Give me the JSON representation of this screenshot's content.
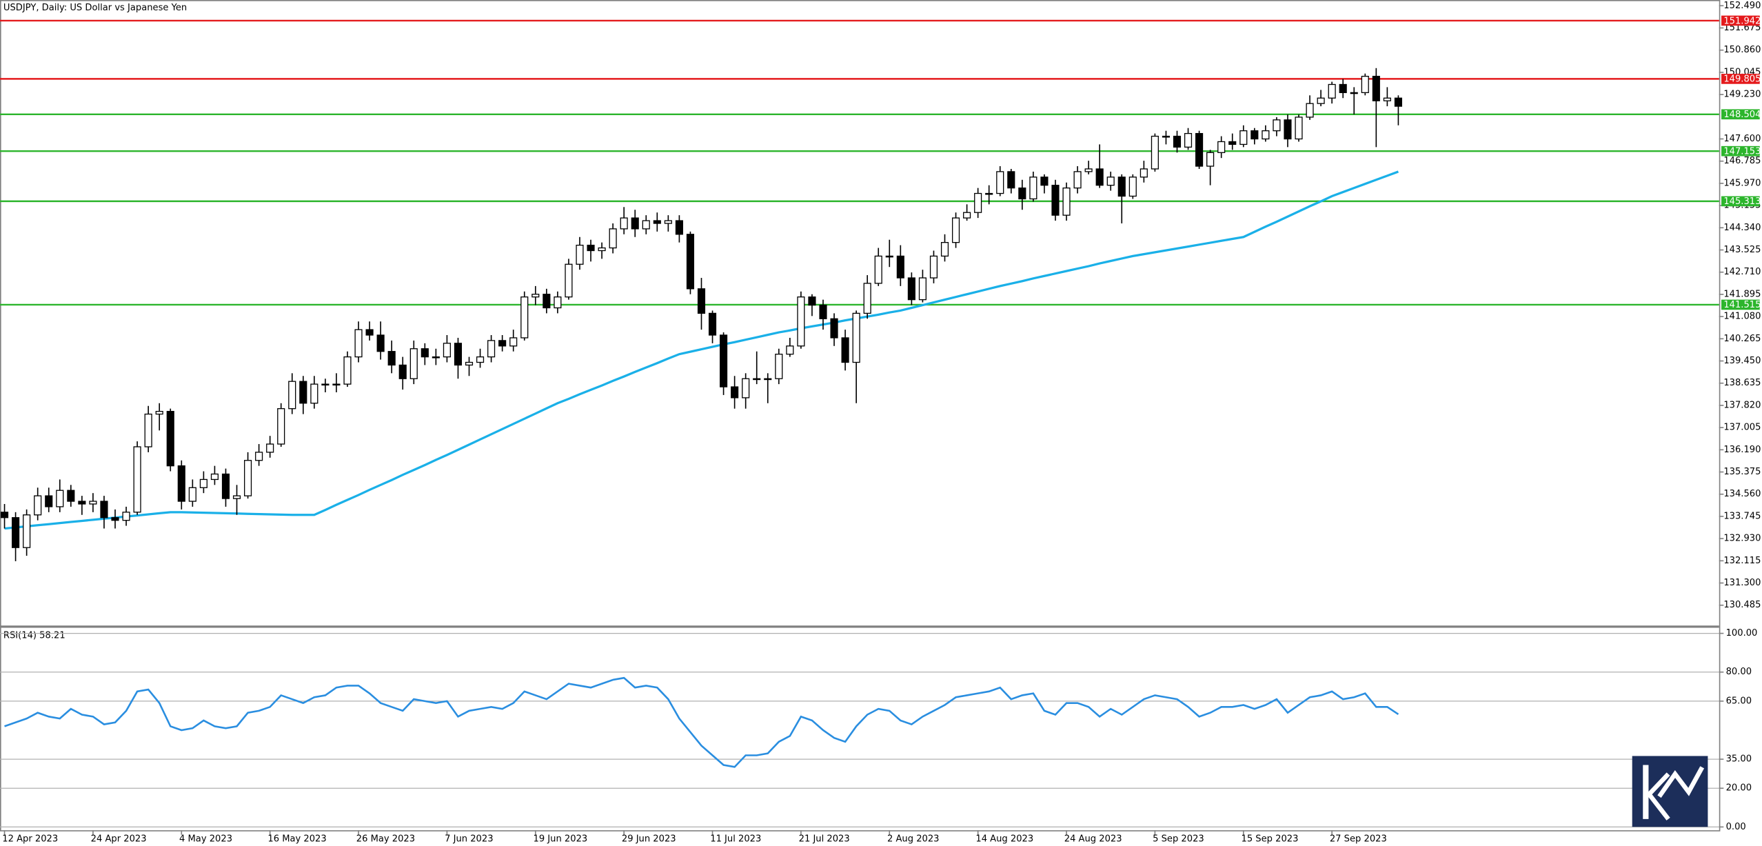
{
  "chart_data": [
    {
      "type": "candlestick",
      "title": "USDJPY, Daily:  US Dollar vs Japanese Yen",
      "categories": [
        "12 Apr 2023",
        null,
        null,
        null,
        null,
        null,
        null,
        null,
        "24 Apr 2023",
        null,
        null,
        null,
        null,
        null,
        null,
        null,
        "4 May 2023",
        null,
        null,
        null,
        null,
        null,
        null,
        null,
        "16 May 2023",
        null,
        null,
        null,
        null,
        null,
        null,
        null,
        "26 May 2023",
        null,
        null,
        null,
        null,
        null,
        null,
        null,
        "7 Jun 2023",
        null,
        null,
        null,
        null,
        null,
        null,
        null,
        "19 Jun 2023",
        null,
        null,
        null,
        null,
        null,
        null,
        null,
        "29 Jun 2023",
        null,
        null,
        null,
        null,
        null,
        null,
        null,
        "11 Jul 2023",
        null,
        null,
        null,
        null,
        null,
        null,
        null,
        "21 Jul 2023",
        null,
        null,
        null,
        null,
        null,
        null,
        null,
        "2 Aug 2023",
        null,
        null,
        null,
        null,
        null,
        null,
        null,
        "14 Aug 2023",
        null,
        null,
        null,
        null,
        null,
        null,
        null,
        "24 Aug 2023",
        null,
        null,
        null,
        null,
        null,
        null,
        null,
        "5 Sep 2023",
        null,
        null,
        null,
        null,
        null,
        null,
        null,
        "15 Sep 2023",
        null,
        null,
        null,
        null,
        null,
        null,
        null,
        "27 Sep 2023",
        null,
        null,
        null,
        null,
        null,
        null
      ],
      "open": [
        133.9,
        133.7,
        132.6,
        133.8,
        134.5,
        134.1,
        134.7,
        134.3,
        134.2,
        134.3,
        133.7,
        133.6,
        133.9,
        136.3,
        137.5,
        137.6,
        135.6,
        134.3,
        134.8,
        135.1,
        135.3,
        134.4,
        134.5,
        135.8,
        136.1,
        136.4,
        137.7,
        138.7,
        137.9,
        138.6,
        138.6,
        138.6,
        139.6,
        140.6,
        140.4,
        139.8,
        139.3,
        138.8,
        139.9,
        139.6,
        139.6,
        140.1,
        139.3,
        139.4,
        139.6,
        140.2,
        140.0,
        140.3,
        141.8,
        141.9,
        141.4,
        141.8,
        143.0,
        143.7,
        143.5,
        143.6,
        144.3,
        144.7,
        144.3,
        144.6,
        144.5,
        144.6,
        144.1,
        142.1,
        141.2,
        140.4,
        138.5,
        138.1,
        138.8,
        138.8,
        138.8,
        139.7,
        140.0,
        141.8,
        141.5,
        141.0,
        140.3,
        139.4,
        141.2,
        142.3,
        143.3,
        143.3,
        142.5,
        141.7,
        142.5,
        143.3,
        143.8,
        144.7,
        144.9,
        145.6,
        145.6,
        146.4,
        145.8,
        145.4,
        146.2,
        145.9,
        144.8,
        145.8,
        146.4,
        146.5,
        145.9,
        146.2,
        145.5,
        146.2,
        146.5,
        147.7,
        147.7,
        147.3,
        147.8,
        146.6,
        147.1,
        147.5,
        147.4,
        147.9,
        147.6,
        147.9,
        148.3,
        147.6,
        148.4,
        148.9,
        149.1,
        149.6,
        149.3,
        149.3,
        149.9,
        149.0,
        149.1
      ],
      "high": [
        134.2,
        133.9,
        134.0,
        134.8,
        134.8,
        135.1,
        134.9,
        134.5,
        134.6,
        134.5,
        134.0,
        134.1,
        136.5,
        137.8,
        137.9,
        137.7,
        135.8,
        135.1,
        135.4,
        135.6,
        135.5,
        134.9,
        136.1,
        136.4,
        136.7,
        137.9,
        139.0,
        138.9,
        138.9,
        138.8,
        139.0,
        139.8,
        140.9,
        140.9,
        140.9,
        140.2,
        139.6,
        140.2,
        140.1,
        139.9,
        140.4,
        140.3,
        139.6,
        139.9,
        140.4,
        140.4,
        140.6,
        142.0,
        142.2,
        142.1,
        142.0,
        143.2,
        144.0,
        143.9,
        143.8,
        144.5,
        145.1,
        145.0,
        144.8,
        144.9,
        144.8,
        144.8,
        144.2,
        142.5,
        141.3,
        140.5,
        138.9,
        139.0,
        139.8,
        139.0,
        139.9,
        140.3,
        142.0,
        141.9,
        141.7,
        141.2,
        140.6,
        141.3,
        142.6,
        143.6,
        143.9,
        143.7,
        142.7,
        142.8,
        143.5,
        144.1,
        144.9,
        145.2,
        145.8,
        145.9,
        146.6,
        146.5,
        146.1,
        146.4,
        146.3,
        146.1,
        146.0,
        146.6,
        146.8,
        147.4,
        146.4,
        146.3,
        146.3,
        146.8,
        147.8,
        147.9,
        147.9,
        148.0,
        147.9,
        147.2,
        147.7,
        147.8,
        148.1,
        148.0,
        148.1,
        148.4,
        148.5,
        148.5,
        149.2,
        149.4,
        149.7,
        149.8,
        149.5,
        150.0,
        150.2,
        149.5,
        149.2
      ],
      "low": [
        133.3,
        132.1,
        132.3,
        133.6,
        133.9,
        133.9,
        134.1,
        133.8,
        133.9,
        133.3,
        133.3,
        133.4,
        133.8,
        136.1,
        136.9,
        135.4,
        134.0,
        134.1,
        134.6,
        134.9,
        134.1,
        133.8,
        134.4,
        135.6,
        135.9,
        136.3,
        137.5,
        137.5,
        137.7,
        138.3,
        138.3,
        138.5,
        139.4,
        140.2,
        139.5,
        139.0,
        138.4,
        138.6,
        139.3,
        139.3,
        139.4,
        138.8,
        138.9,
        139.2,
        139.4,
        139.8,
        139.8,
        140.2,
        141.5,
        141.2,
        141.2,
        141.7,
        142.8,
        143.1,
        143.2,
        143.4,
        144.1,
        144.0,
        144.1,
        144.2,
        144.2,
        143.8,
        141.9,
        140.6,
        140.1,
        138.2,
        137.7,
        137.7,
        138.6,
        137.9,
        138.6,
        139.6,
        139.9,
        141.1,
        140.6,
        140.0,
        139.1,
        137.9,
        141.0,
        142.2,
        142.9,
        142.2,
        141.5,
        141.6,
        142.3,
        143.1,
        143.6,
        144.6,
        144.7,
        145.2,
        145.5,
        145.6,
        145.0,
        145.3,
        145.6,
        144.6,
        144.6,
        145.6,
        146.3,
        145.8,
        145.7,
        144.5,
        145.4,
        146.0,
        146.4,
        147.4,
        147.1,
        147.2,
        146.5,
        145.9,
        146.9,
        147.2,
        147.3,
        147.4,
        147.5,
        147.7,
        147.3,
        147.5,
        148.3,
        148.8,
        148.9,
        149.1,
        148.5,
        149.2,
        147.3,
        148.8,
        148.1
      ],
      "close": [
        133.7,
        132.6,
        133.8,
        134.5,
        134.1,
        134.7,
        134.3,
        134.2,
        134.3,
        133.7,
        133.6,
        133.9,
        136.3,
        137.5,
        137.6,
        135.6,
        134.3,
        134.8,
        135.1,
        135.3,
        134.4,
        134.5,
        135.8,
        136.1,
        136.4,
        137.7,
        138.7,
        137.9,
        138.6,
        138.6,
        138.6,
        139.6,
        140.6,
        140.4,
        139.8,
        139.3,
        138.8,
        139.9,
        139.6,
        139.6,
        140.1,
        139.3,
        139.4,
        139.6,
        140.2,
        140.0,
        140.3,
        141.8,
        141.9,
        141.4,
        141.8,
        143.0,
        143.7,
        143.5,
        143.6,
        144.3,
        144.7,
        144.3,
        144.6,
        144.5,
        144.6,
        144.1,
        142.1,
        141.2,
        140.4,
        138.5,
        138.1,
        138.8,
        138.8,
        138.8,
        139.7,
        140.0,
        141.8,
        141.5,
        141.0,
        140.3,
        139.4,
        141.2,
        142.3,
        143.3,
        143.3,
        142.5,
        141.7,
        142.5,
        143.3,
        143.8,
        144.7,
        144.9,
        145.6,
        145.6,
        146.4,
        145.8,
        145.4,
        146.2,
        145.9,
        144.8,
        145.8,
        146.4,
        146.5,
        145.9,
        146.2,
        145.5,
        146.2,
        146.5,
        147.7,
        147.7,
        147.3,
        147.8,
        146.6,
        147.1,
        147.5,
        147.4,
        147.9,
        147.6,
        147.9,
        148.3,
        147.6,
        148.4,
        148.9,
        149.1,
        149.6,
        149.3,
        149.3,
        149.9,
        149.0,
        149.1,
        148.8
      ],
      "up_color": "#ffffff",
      "down_color": "#000000",
      "ma": {
        "color": "#1ab0e8",
        "values": [
          133.3,
          133.34,
          133.38,
          133.42,
          133.46,
          133.5,
          133.54,
          133.58,
          133.62,
          133.66,
          133.7,
          133.74,
          133.78,
          133.82,
          133.86,
          133.9,
          133.9,
          133.89,
          133.88,
          133.87,
          133.86,
          133.85,
          133.84,
          133.83,
          133.82,
          133.81,
          133.8,
          133.8,
          133.8,
          133.98,
          134.17,
          134.35,
          134.53,
          134.72,
          134.9,
          135.08,
          135.27,
          135.45,
          135.63,
          135.82,
          136.0,
          136.19,
          136.38,
          136.57,
          136.76,
          136.95,
          137.14,
          137.33,
          137.52,
          137.71,
          137.9,
          138.06,
          138.23,
          138.39,
          138.55,
          138.72,
          138.88,
          139.05,
          139.21,
          139.37,
          139.54,
          139.7,
          139.79,
          139.88,
          139.97,
          140.06,
          140.14,
          140.23,
          140.32,
          140.41,
          140.5,
          140.57,
          140.65,
          140.72,
          140.79,
          140.86,
          140.94,
          141.01,
          141.08,
          141.15,
          141.23,
          141.3,
          141.4,
          141.5,
          141.6,
          141.7,
          141.8,
          141.9,
          142.0,
          142.1,
          142.2,
          142.29,
          142.38,
          142.48,
          142.57,
          142.66,
          142.75,
          142.84,
          142.93,
          143.03,
          143.12,
          143.21,
          143.3,
          143.37,
          143.44,
          143.51,
          143.58,
          143.65,
          143.72,
          143.79,
          143.86,
          143.93,
          144.0,
          144.19,
          144.38,
          144.56,
          144.75,
          144.94,
          145.13,
          145.31,
          145.5,
          145.65,
          145.8,
          145.95,
          146.1,
          146.25,
          146.4
        ]
      },
      "levels": [
        {
          "value": 151.942,
          "color": "#e41a1c"
        },
        {
          "value": 149.805,
          "color": "#e41a1c"
        },
        {
          "value": 148.504,
          "color": "#2cb52c"
        },
        {
          "value": 147.153,
          "color": "#2cb52c"
        },
        {
          "value": 145.313,
          "color": "#2cb52c"
        },
        {
          "value": 141.515,
          "color": "#2cb52c"
        }
      ],
      "ylim": [
        129.74,
        152.7
      ],
      "yticks": [
        {
          "value": 152.49,
          "label": "152.490"
        },
        151.675,
        {
          "value": 150.86,
          "label": "150.860"
        },
        150.045,
        {
          "value": 149.23,
          "label": "149.230"
        },
        {
          "value": 147.6,
          "label": "147.600"
        },
        146.785,
        {
          "value": 145.97,
          "label": "145.970"
        },
        145.155,
        {
          "value": 144.34,
          "label": "144.340"
        },
        143.525,
        {
          "value": 142.71,
          "label": "142.710"
        },
        141.895,
        {
          "value": 141.08,
          "label": "141.080"
        },
        140.265,
        {
          "value": 139.45,
          "label": "139.450"
        },
        138.635,
        {
          "value": 137.82,
          "label": "137.820"
        },
        137.005,
        {
          "value": 136.19,
          "label": "136.190"
        },
        135.375,
        {
          "value": 134.56,
          "label": "134.560"
        },
        133.745,
        {
          "value": 132.93,
          "label": "132.930"
        },
        132.115,
        {
          "value": 131.3,
          "label": "131.300"
        },
        130.485
      ]
    },
    {
      "type": "line",
      "title": "RSI(14) 58.21",
      "color": "#2a8ee0",
      "values": [
        52,
        54,
        56,
        59,
        57,
        56,
        61,
        58,
        57,
        53,
        54,
        60,
        70,
        71,
        64,
        52,
        50,
        51,
        55,
        52,
        51,
        52,
        59,
        60,
        62,
        68,
        66,
        64,
        67,
        68,
        72,
        73,
        73,
        69,
        64,
        62,
        60,
        66,
        65,
        64,
        65,
        57,
        60,
        61,
        62,
        61,
        64,
        70,
        68,
        66,
        70,
        74,
        73,
        72,
        74,
        76,
        77,
        72,
        73,
        72,
        66,
        56,
        49,
        42,
        37,
        32,
        31,
        37,
        37,
        38,
        44,
        47,
        57,
        55,
        50,
        46,
        44,
        52,
        58,
        61,
        60,
        55,
        53,
        57,
        60,
        63,
        67,
        68,
        69,
        70,
        72,
        66,
        68,
        69,
        60,
        58,
        64,
        64,
        62,
        57,
        61,
        58,
        62,
        66,
        68,
        67,
        66,
        62,
        57,
        59,
        62,
        62,
        63,
        61,
        63,
        66,
        59,
        63,
        67,
        68,
        70,
        66,
        67,
        69,
        62,
        62,
        58.21
      ],
      "ylim": [
        -1.7,
        102.9
      ],
      "yticks": [
        {
          "value": 100,
          "label": "100.00"
        },
        {
          "value": 80,
          "label": "80.00"
        },
        {
          "value": 65,
          "label": "65.00"
        },
        {
          "value": 35,
          "label": "35.00"
        },
        {
          "value": 20,
          "label": "20.00"
        },
        {
          "value": 0,
          "label": "0.00"
        }
      ]
    }
  ]
}
